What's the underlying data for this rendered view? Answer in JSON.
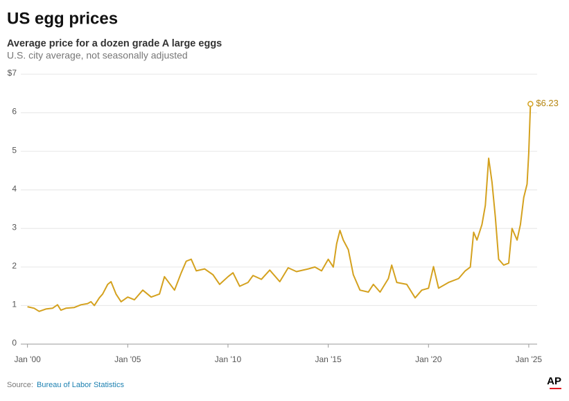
{
  "title": "US egg prices",
  "subtitle": "Average price for a dozen grade A large eggs",
  "note": "U.S. city average, not seasonally adjusted",
  "source_label": "Source:",
  "source": "Bureau of Labor Statistics",
  "logo": "AP",
  "chart_data": {
    "type": "line",
    "xlim": [
      "1999-09",
      "2025-06"
    ],
    "xticks": [
      {
        "value": "2000-01",
        "label": "Jan '00"
      },
      {
        "value": "2005-01",
        "label": "Jan '05"
      },
      {
        "value": "2010-01",
        "label": "Jan '10"
      },
      {
        "value": "2015-01",
        "label": "Jan '15"
      },
      {
        "value": "2020-01",
        "label": "Jan '20"
      },
      {
        "value": "2025-01",
        "label": "Jan '25"
      }
    ],
    "ylim": [
      0,
      7
    ],
    "yticks": [
      0,
      1,
      2,
      3,
      4,
      5,
      6,
      {
        "value": 7,
        "label": "$7"
      }
    ],
    "grid": true,
    "x": [
      "2000-01",
      "2000-05",
      "2000-08",
      "2000-12",
      "2001-04",
      "2001-07",
      "2001-09",
      "2001-12",
      "2002-05",
      "2002-09",
      "2003-01",
      "2003-03",
      "2003-05",
      "2003-08",
      "2003-10",
      "2004-01",
      "2004-03",
      "2004-06",
      "2004-09",
      "2005-01",
      "2005-05",
      "2005-10",
      "2006-03",
      "2006-08",
      "2006-11",
      "2007-05",
      "2007-09",
      "2007-12",
      "2008-03",
      "2008-06",
      "2008-11",
      "2009-04",
      "2009-08",
      "2010-01",
      "2010-04",
      "2010-08",
      "2011-01",
      "2011-04",
      "2011-09",
      "2012-02",
      "2012-08",
      "2013-01",
      "2013-06",
      "2014-01",
      "2014-05",
      "2014-09",
      "2015-01",
      "2015-04",
      "2015-06",
      "2015-08",
      "2015-10",
      "2016-01",
      "2016-04",
      "2016-08",
      "2017-01",
      "2017-04",
      "2017-08",
      "2018-01",
      "2018-03",
      "2018-06",
      "2018-12",
      "2019-05",
      "2019-09",
      "2020-01",
      "2020-04",
      "2020-07",
      "2021-01",
      "2021-07",
      "2021-11",
      "2022-02",
      "2022-04",
      "2022-06",
      "2022-09",
      "2022-11",
      "2023-01",
      "2023-03",
      "2023-05",
      "2023-07",
      "2023-10",
      "2024-01",
      "2024-03",
      "2024-06",
      "2024-08",
      "2024-10",
      "2024-12",
      "2025-01",
      "2025-02"
    ],
    "series": [
      {
        "color": "#d4a11e",
        "values": [
          0.97,
          0.93,
          0.85,
          0.91,
          0.93,
          1.02,
          0.88,
          0.93,
          0.95,
          1.02,
          1.05,
          1.1,
          1.0,
          1.2,
          1.3,
          1.55,
          1.62,
          1.3,
          1.1,
          1.22,
          1.15,
          1.4,
          1.22,
          1.3,
          1.75,
          1.4,
          1.85,
          2.15,
          2.2,
          1.9,
          1.95,
          1.8,
          1.55,
          1.75,
          1.85,
          1.5,
          1.6,
          1.78,
          1.68,
          1.92,
          1.62,
          1.98,
          1.88,
          1.95,
          2.0,
          1.9,
          2.2,
          2.0,
          2.6,
          2.95,
          2.7,
          2.45,
          1.8,
          1.4,
          1.35,
          1.55,
          1.35,
          1.7,
          2.05,
          1.6,
          1.55,
          1.2,
          1.4,
          1.45,
          2.01,
          1.45,
          1.6,
          1.7,
          1.9,
          2.0,
          2.9,
          2.7,
          3.1,
          3.6,
          4.82,
          4.2,
          3.3,
          2.2,
          2.05,
          2.1,
          3.0,
          2.7,
          3.1,
          3.8,
          4.15,
          4.95,
          6.23
        ],
        "value_labels": [
          null,
          null,
          null,
          null,
          null,
          null,
          null,
          null,
          null,
          null,
          null,
          null,
          null,
          null,
          null,
          null,
          null,
          null,
          null,
          null,
          null,
          null,
          null,
          null,
          null,
          null,
          null,
          null,
          null,
          null,
          null,
          null,
          null,
          null,
          null,
          null,
          null,
          null,
          null,
          null,
          null,
          null,
          null,
          null,
          null,
          null,
          null,
          null,
          null,
          null,
          null,
          null,
          null,
          null,
          null,
          null,
          null,
          null,
          null,
          null,
          null,
          null,
          null,
          null,
          null,
          null,
          null,
          null,
          null,
          null,
          null,
          null,
          null,
          null,
          null,
          null,
          null,
          null,
          null,
          null,
          null,
          null,
          null,
          null,
          null,
          null,
          "$6.23"
        ]
      }
    ]
  }
}
